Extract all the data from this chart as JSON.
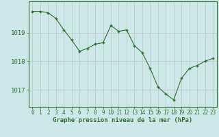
{
  "x": [
    0,
    1,
    2,
    3,
    4,
    5,
    6,
    7,
    8,
    9,
    10,
    11,
    12,
    13,
    14,
    15,
    16,
    17,
    18,
    19,
    20,
    21,
    22,
    23
  ],
  "y": [
    1019.75,
    1019.75,
    1019.7,
    1019.5,
    1019.1,
    1018.75,
    1018.35,
    1018.45,
    1018.6,
    1018.65,
    1019.25,
    1019.05,
    1019.1,
    1018.55,
    1018.3,
    1017.75,
    1017.1,
    1016.85,
    1016.65,
    1017.4,
    1017.75,
    1017.85,
    1018.0,
    1018.1
  ],
  "ylim": [
    1016.4,
    1020.1
  ],
  "yticks": [
    1017,
    1018,
    1019
  ],
  "xlabel": "Graphe pression niveau de la mer (hPa)",
  "line_color": "#2d6e2d",
  "marker": "+",
  "marker_color": "#2d6e2d",
  "bg_color": "#cce8e8",
  "grid_color": "#bbbbbb",
  "axis_color": "#2d6e2d",
  "label_color": "#2d6e2d",
  "tick_fontsize": 5.5,
  "xlabel_fontsize": 6.5
}
